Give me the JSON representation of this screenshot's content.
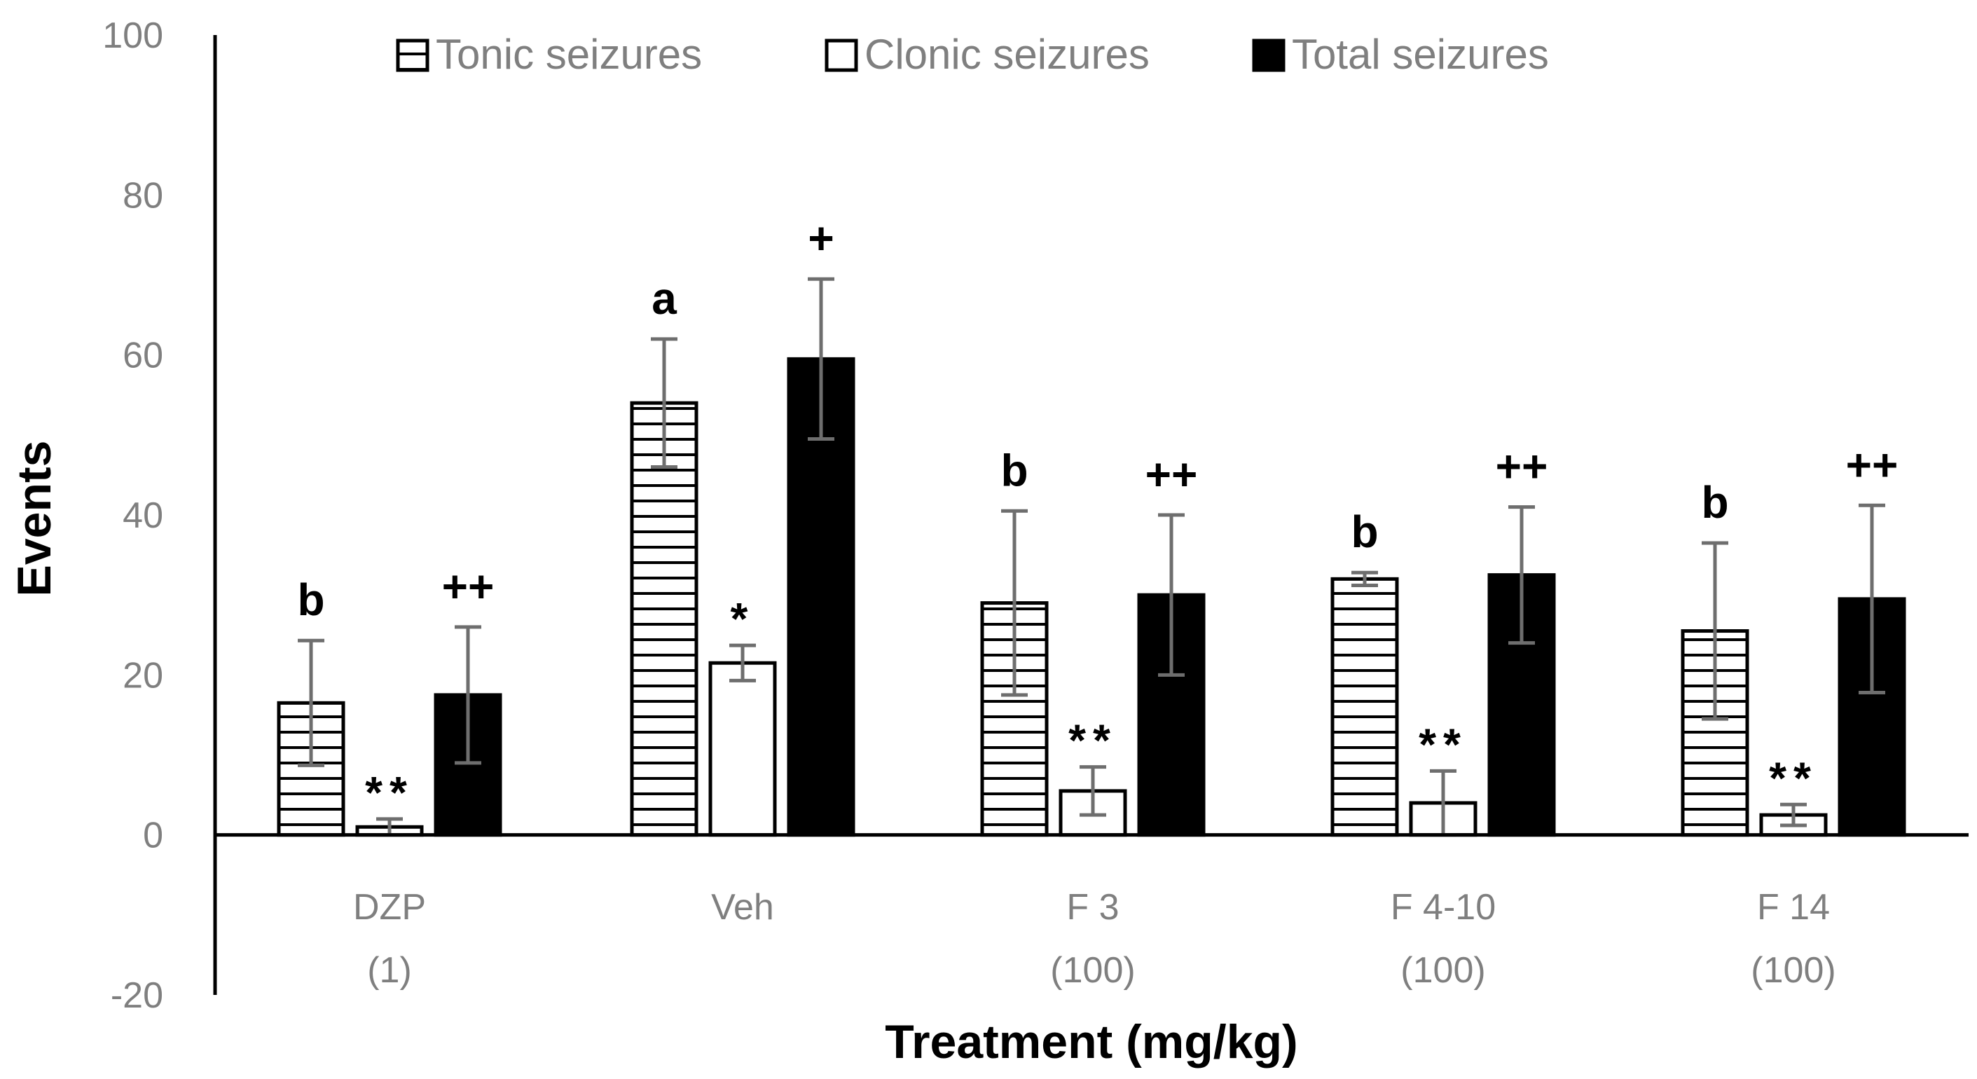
{
  "chart_data": {
    "type": "bar",
    "title": "",
    "xlabel": "Treatment (mg/kg)",
    "ylabel": "Events",
    "ylim": [
      -20,
      100
    ],
    "yticks": [
      100,
      80,
      60,
      40,
      20,
      0,
      -20
    ],
    "legend_position": "top",
    "categories": [
      {
        "line1": "DZP",
        "line2": "(1)"
      },
      {
        "line1": "Veh",
        "line2": ""
      },
      {
        "line1": "F 3",
        "line2": "(100)"
      },
      {
        "line1": "F 4-10",
        "line2": "(100)"
      },
      {
        "line1": "F 14",
        "line2": "(100)"
      }
    ],
    "series": [
      {
        "name": "Tonic seizures",
        "pattern": "horizontal-stripes",
        "values": [
          16.5,
          54,
          29,
          32,
          25.5
        ],
        "errors": [
          7.8,
          8,
          11.5,
          0.8,
          11
        ]
      },
      {
        "name": "Clonic seizures",
        "pattern": "open",
        "values": [
          1,
          21.5,
          5.5,
          4,
          2.5
        ],
        "errors": [
          1,
          2.2,
          3,
          4,
          1.3
        ]
      },
      {
        "name": "Total seizures",
        "pattern": "solid",
        "values": [
          17.5,
          59.5,
          30,
          32.5,
          29.5
        ],
        "errors": [
          8.5,
          10,
          10,
          8.5,
          11.7
        ]
      }
    ],
    "annotations": [
      {
        "category": 0,
        "series": 0,
        "text": "b"
      },
      {
        "category": 0,
        "series": 1,
        "text": "**"
      },
      {
        "category": 0,
        "series": 2,
        "text": "++"
      },
      {
        "category": 1,
        "series": 0,
        "text": "a"
      },
      {
        "category": 1,
        "series": 1,
        "text": "*"
      },
      {
        "category": 1,
        "series": 2,
        "text": "+"
      },
      {
        "category": 2,
        "series": 0,
        "text": "b"
      },
      {
        "category": 2,
        "series": 1,
        "text": "**"
      },
      {
        "category": 2,
        "series": 2,
        "text": "++"
      },
      {
        "category": 3,
        "series": 0,
        "text": "b"
      },
      {
        "category": 3,
        "series": 1,
        "text": "**"
      },
      {
        "category": 3,
        "series": 2,
        "text": "++"
      },
      {
        "category": 4,
        "series": 0,
        "text": "b"
      },
      {
        "category": 4,
        "series": 1,
        "text": "**"
      },
      {
        "category": 4,
        "series": 2,
        "text": "++"
      }
    ],
    "colors": {
      "bar_fill_solid": "#000000",
      "bar_fill_open": "#ffffff",
      "stripe": "#000000",
      "error_bar": "#6e6e6e",
      "axis": "#000000",
      "tick_text": "#7f7f7f"
    }
  }
}
